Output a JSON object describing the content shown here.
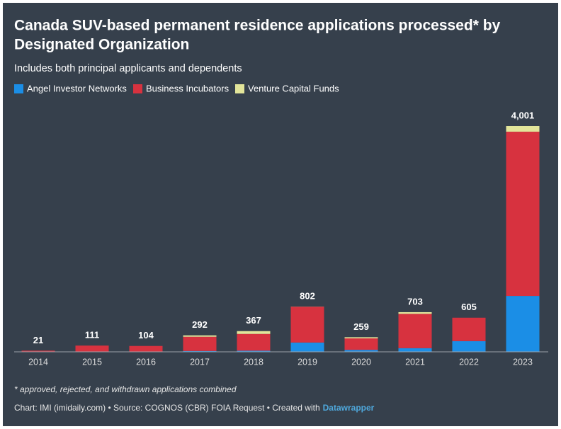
{
  "chart_data": {
    "type": "stacked_bar",
    "title": [
      "Canada SUV-based permanent residence applications processed* by",
      "Designated Organization"
    ],
    "subtitle": "Includes both principal applicants and dependents",
    "categories": [
      "2014",
      "2015",
      "2016",
      "2017",
      "2018",
      "2019",
      "2020",
      "2021",
      "2022",
      "2023"
    ],
    "series": [
      {
        "name": "Angel Investor Networks",
        "color": "#1b8ee6",
        "values": [
          0,
          0,
          0,
          15,
          20,
          165,
          35,
          65,
          190,
          990
        ]
      },
      {
        "name": "Business Incubators",
        "color": "#d7323f",
        "values": [
          21,
          111,
          104,
          252,
          297,
          635,
          204,
          608,
          415,
          2910
        ]
      },
      {
        "name": "Venture Capital Funds",
        "color": "#e2e59a",
        "values": [
          0,
          0,
          0,
          25,
          50,
          2,
          20,
          30,
          0,
          101
        ]
      }
    ],
    "totals": [
      21,
      111,
      104,
      292,
      367,
      802,
      259,
      703,
      605,
      {
        "value": 4001,
        "label": "4,001"
      }
    ],
    "ylim": [
      0,
      4001
    ],
    "footnote": "* approved, rejected, and withdrawn applications combined",
    "credit": "Chart: IMI (imidaily.com) • Source: COGNOS (CBR) FOIA Request • Created with",
    "credit_link": "Datawrapper"
  }
}
